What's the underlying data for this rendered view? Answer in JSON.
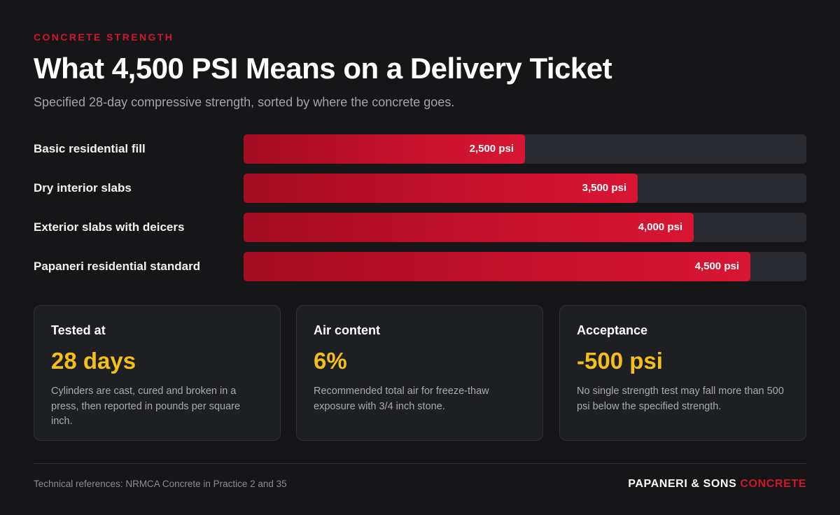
{
  "header": {
    "eyebrow": "CONCRETE STRENGTH",
    "title": "What 4,500 PSI Means on a Delivery Ticket",
    "subtitle": "Specified 28-day compressive strength, sorted by where the concrete goes."
  },
  "chart_data": {
    "type": "bar",
    "orientation": "horizontal",
    "categories": [
      "Basic residential fill",
      "Dry interior slabs",
      "Exterior slabs with deicers",
      "Papaneri residential standard"
    ],
    "values": [
      2500,
      3500,
      4000,
      4500
    ],
    "data_labels": [
      "2,500 psi",
      "3,500 psi",
      "4,000 psi",
      "4,500 psi"
    ],
    "unit": "psi",
    "xlim": [
      0,
      5000
    ],
    "grid": false,
    "legend": "none",
    "colors": {
      "bar": "#c40f2b",
      "track": "#2a2b30"
    }
  },
  "cards": [
    {
      "label": "Tested at",
      "value": "28 days",
      "description": "Cylinders are cast, cured and broken in a press, then reported in pounds per square inch."
    },
    {
      "label": "Air content",
      "value": "6%",
      "description": "Recommended total air for freeze-thaw exposure with 3/4 inch stone."
    },
    {
      "label": "Acceptance",
      "value": "-500 psi",
      "description": "No single strength test may fall more than 500 psi below the specified strength."
    }
  ],
  "footer": {
    "note": "Technical references: NRMCA Concrete in Practice 2 and 35",
    "brand_main": "PAPANERI & SONS",
    "brand_accent": "CONCRETE"
  },
  "colors": {
    "background": "#161618",
    "accent_red": "#d0152e",
    "accent_yellow": "#f5bf1a"
  }
}
